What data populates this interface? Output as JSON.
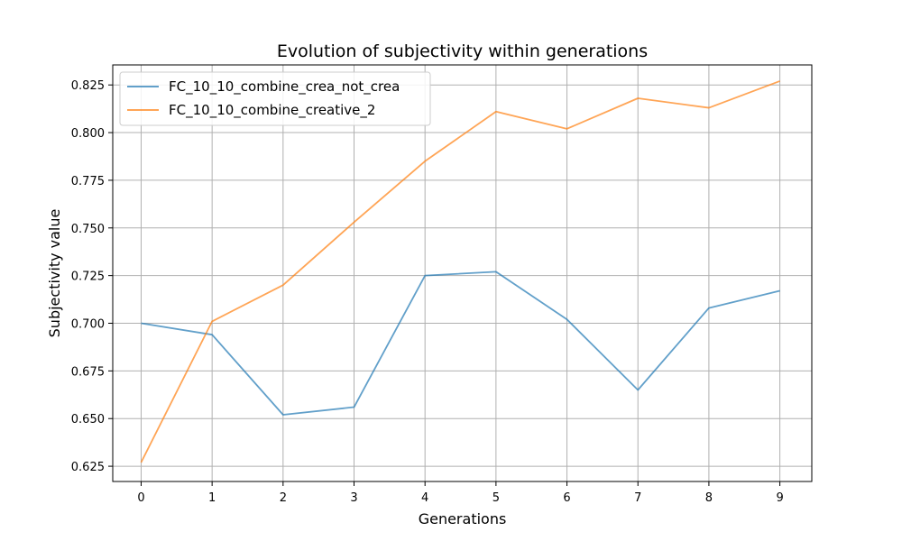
{
  "chart_data": {
    "type": "line",
    "title": "Evolution of subjectivity within generations",
    "xlabel": "Generations",
    "ylabel": "Subjectivity value",
    "x": [
      0,
      1,
      2,
      3,
      4,
      5,
      6,
      7,
      8,
      9
    ],
    "xlim": [
      -0.4,
      9.45
    ],
    "ylim": [
      0.617,
      0.8355
    ],
    "yticks": [
      0.625,
      0.65,
      0.675,
      0.7,
      0.725,
      0.75,
      0.775,
      0.8,
      0.825
    ],
    "ytick_labels": [
      "0.625",
      "0.650",
      "0.675",
      "0.700",
      "0.725",
      "0.750",
      "0.775",
      "0.800",
      "0.825"
    ],
    "grid": true,
    "legend_position": "top-left",
    "series": [
      {
        "name": "FC_10_10_combine_crea_not_crea",
        "color": "#1f77b4",
        "values": [
          0.7,
          0.694,
          0.652,
          0.656,
          0.725,
          0.727,
          0.702,
          0.665,
          0.708,
          0.717
        ]
      },
      {
        "name": "FC_10_10_combine_creative_2",
        "color": "#ff7f0e",
        "values": [
          0.627,
          0.701,
          0.72,
          0.753,
          0.785,
          0.811,
          0.802,
          0.818,
          0.813,
          0.827
        ]
      }
    ]
  }
}
